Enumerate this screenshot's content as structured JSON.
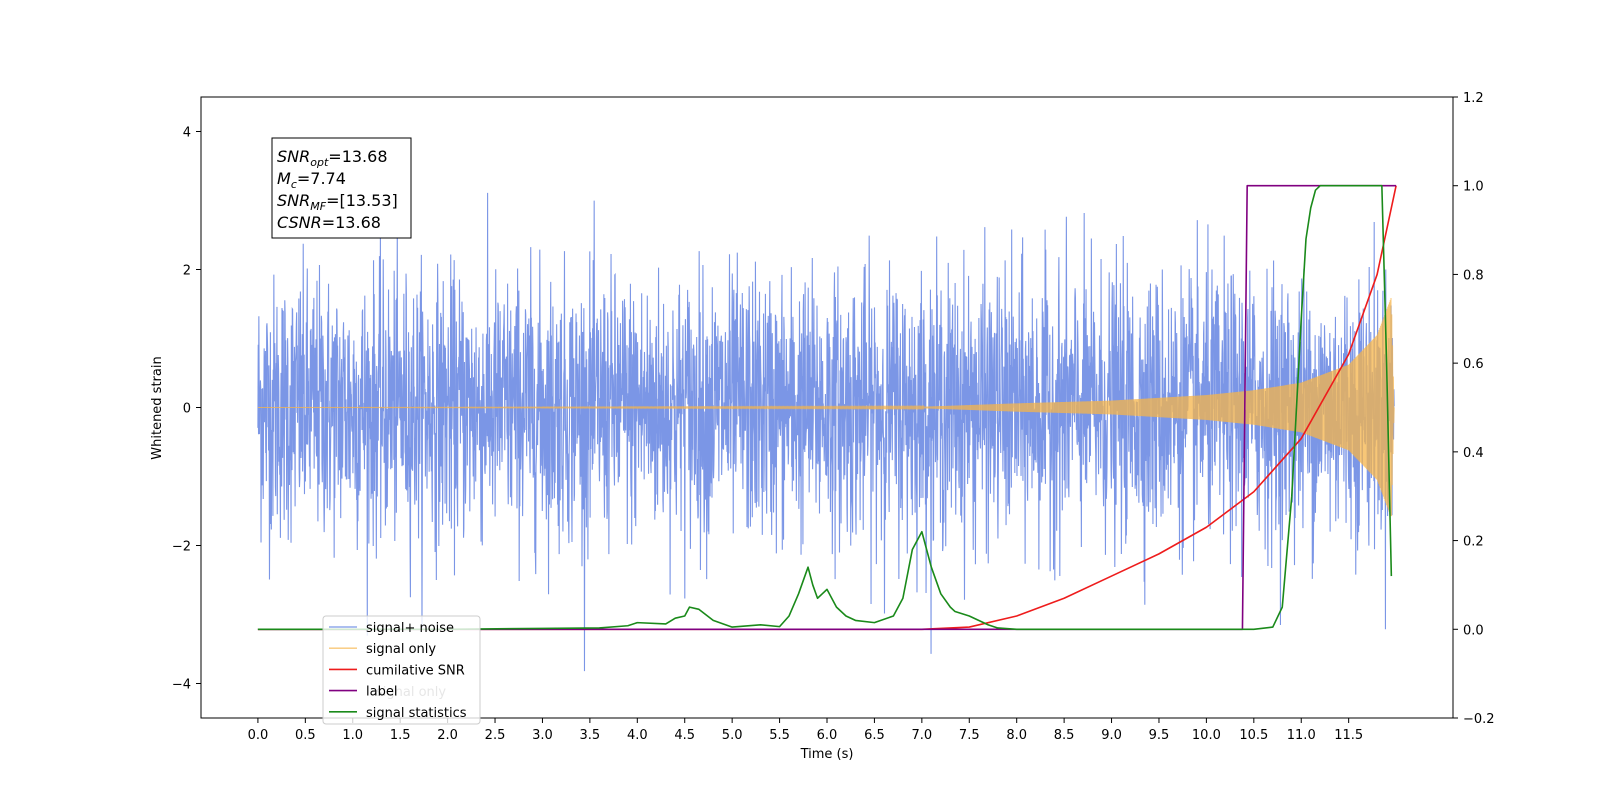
{
  "chart_data": {
    "type": "line",
    "title": "",
    "xlabel": "Time (s)",
    "ylabel": "Whitened strain",
    "y2label": "",
    "xlim": [
      -0.6,
      12.6
    ],
    "ylim": [
      -4.5,
      4.5
    ],
    "y2lim": [
      -0.2,
      1.2
    ],
    "x_ticks": [
      0.0,
      0.5,
      1.0,
      1.5,
      2.0,
      2.5,
      3.0,
      3.5,
      4.0,
      4.5,
      5.0,
      5.5,
      6.0,
      6.5,
      7.0,
      7.5,
      8.0,
      8.5,
      9.0,
      9.5,
      10.0,
      10.5,
      11.0,
      11.5
    ],
    "x_tick_labels": [
      "0.0",
      "0.5",
      "1.0",
      "1.5",
      "2.0",
      "2.5",
      "3.0",
      "3.5",
      "4.0",
      "4.5",
      "5.0",
      "5.5",
      "6.0",
      "6.5",
      "7.0",
      "7.5",
      "8.0",
      "8.5",
      "9.0",
      "9.5",
      "10.0",
      "10.5",
      "11.0",
      "11.5"
    ],
    "y_ticks": [
      -4,
      -2,
      0,
      2,
      4
    ],
    "y_tick_labels": [
      "−4",
      "−2",
      "0",
      "2",
      "4"
    ],
    "y2_ticks": [
      -0.2,
      0.0,
      0.2,
      0.4,
      0.6,
      0.8,
      1.0,
      1.2
    ],
    "y2_tick_labels": [
      "−0.2",
      "0.0",
      "0.2",
      "0.4",
      "0.6",
      "0.8",
      "1.0",
      "1.2"
    ],
    "grid": false,
    "legend_position": "bottom-left",
    "info_box": {
      "lines": [
        {
          "base": "SNR",
          "sub": "opt",
          "value": "=13.68"
        },
        {
          "base": "M",
          "sub": "c",
          "value": "=7.74"
        },
        {
          "base": "SNR",
          "sub": "MF",
          "value": "=[13.53]"
        },
        {
          "base": "CSNR",
          "sub": "",
          "value": "=13.68"
        }
      ]
    },
    "series": [
      {
        "name": "signal+ noise",
        "axis": "left",
        "color": "#7b96e6",
        "kind": "noise",
        "x_range": [
          0.0,
          11.98
        ],
        "amplitude_sd": 0.95,
        "max_abs": 4.1
      },
      {
        "name": "signal only",
        "axis": "left",
        "color": "#f5b44a",
        "kind": "chirp",
        "x_range": [
          0.0,
          11.98
        ],
        "envelope": {
          "x": [
            0.0,
            7.0,
            8.0,
            9.0,
            10.0,
            10.5,
            11.0,
            11.5,
            11.8,
            11.95,
            11.98
          ],
          "y": [
            0.0,
            0.01,
            0.06,
            0.1,
            0.18,
            0.25,
            0.36,
            0.62,
            1.05,
            1.6,
            0.0
          ]
        }
      },
      {
        "name": "cumilative SNR",
        "axis": "right",
        "color": "#ee1c1c",
        "kind": "line",
        "x": [
          0.0,
          6.5,
          7.0,
          7.5,
          8.0,
          8.5,
          9.0,
          9.5,
          10.0,
          10.5,
          11.0,
          11.5,
          11.8,
          12.0
        ],
        "y": [
          0.0,
          0.0,
          0.0,
          0.005,
          0.03,
          0.07,
          0.12,
          0.17,
          0.23,
          0.31,
          0.43,
          0.62,
          0.8,
          1.0
        ]
      },
      {
        "name": "label",
        "axis": "right",
        "color": "#800080",
        "kind": "line",
        "x": [
          0.0,
          10.38,
          10.43,
          12.0
        ],
        "y": [
          0.0,
          0.0,
          1.0,
          1.0
        ]
      },
      {
        "name": "signal statistics",
        "axis": "right",
        "color": "#1a8a1a",
        "kind": "line",
        "x": [
          0.0,
          2.0,
          3.0,
          3.6,
          3.9,
          4.0,
          4.3,
          4.4,
          4.5,
          4.55,
          4.65,
          4.8,
          5.0,
          5.3,
          5.5,
          5.6,
          5.7,
          5.8,
          5.85,
          5.9,
          5.95,
          6.0,
          6.05,
          6.1,
          6.2,
          6.3,
          6.5,
          6.7,
          6.8,
          6.9,
          7.0,
          7.05,
          7.1,
          7.2,
          7.3,
          7.35,
          7.5,
          7.7,
          7.8,
          8.0,
          9.0,
          10.5,
          10.7,
          10.8,
          10.9,
          11.0,
          11.05,
          11.1,
          11.15,
          11.2,
          11.4,
          11.85,
          11.9,
          11.95
        ],
        "y": [
          0.0,
          0.0,
          0.002,
          0.003,
          0.008,
          0.015,
          0.012,
          0.025,
          0.03,
          0.05,
          0.045,
          0.02,
          0.005,
          0.01,
          0.006,
          0.03,
          0.08,
          0.14,
          0.1,
          0.07,
          0.08,
          0.09,
          0.07,
          0.05,
          0.03,
          0.02,
          0.015,
          0.03,
          0.07,
          0.18,
          0.22,
          0.18,
          0.14,
          0.08,
          0.05,
          0.04,
          0.03,
          0.01,
          0.003,
          0.0,
          0.0,
          0.0,
          0.005,
          0.05,
          0.3,
          0.7,
          0.88,
          0.95,
          0.99,
          1.0,
          1.0,
          1.0,
          0.6,
          0.12
        ]
      }
    ],
    "legend_entries": [
      "signal+ noise",
      "signal only",
      "cumilative SNR",
      "label",
      "signal statistics"
    ],
    "legend_hidden_text": "signal only"
  }
}
